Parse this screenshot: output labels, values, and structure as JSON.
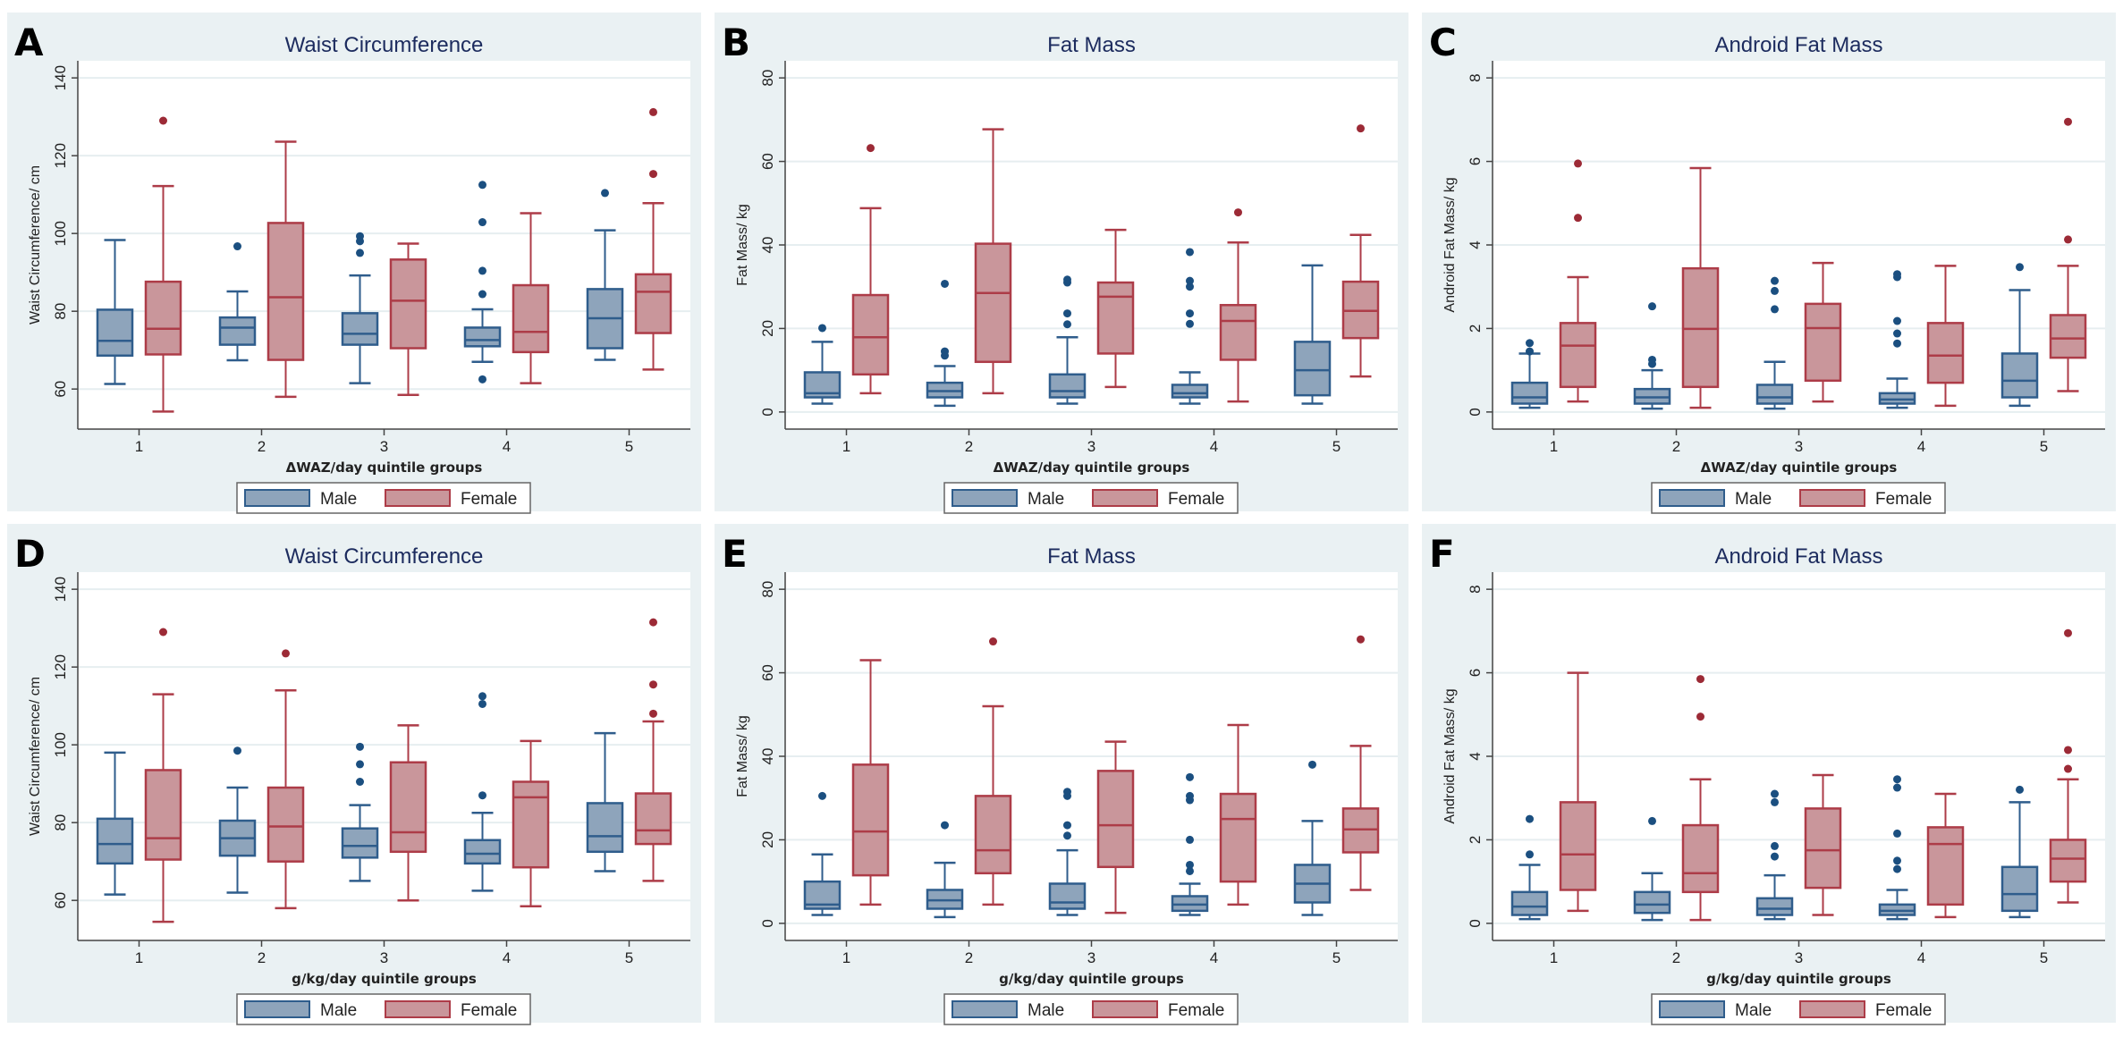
{
  "colors": {
    "panel_bg": "#eaf1f3",
    "male_fill": "#8ea4bb",
    "male_stroke": "#2f5d8c",
    "male_outlier": "#1b4f80",
    "female_fill": "#c9969b",
    "female_stroke": "#ad3c48",
    "female_outlier": "#9c2a36",
    "title": "#1c2b5e"
  },
  "chart_data": [
    {
      "panel": "A",
      "type": "box",
      "title": "Waist Circumference",
      "ylabel": "Waist Circumference/ cm",
      "xlabel": "ΔWAZ/day quintile groups",
      "ylim": [
        49.7,
        144.4
      ],
      "yticks": [
        60,
        80,
        100,
        120,
        140
      ],
      "grid": true,
      "categories": [
        "1",
        "2",
        "3",
        "4",
        "5"
      ],
      "legend": [
        "Male",
        "Female"
      ],
      "legend_position": "bottom",
      "box_fields": [
        "min",
        "q1",
        "median",
        "q3",
        "max",
        "outliers"
      ],
      "series": [
        {
          "name": "Male",
          "boxes": [
            [
              61.3,
              68.6,
              72.4,
              80.4,
              98.3,
              []
            ],
            [
              67.4,
              71.4,
              75.8,
              78.4,
              85.1,
              [
                96.7
              ]
            ],
            [
              61.5,
              71.4,
              74.2,
              79.5,
              89.2,
              [
                95,
                98,
                99.3
              ]
            ],
            [
              67,
              71,
              72.6,
              75.8,
              80.5,
              [
                62.5,
                84.4,
                90.4,
                102.9,
                112.5
              ]
            ],
            [
              67.5,
              70.5,
              78.2,
              85.7,
              100.8,
              [
                110.4
              ]
            ]
          ]
        },
        {
          "name": "Female",
          "boxes": [
            [
              54.2,
              68.9,
              75.5,
              87.6,
              112.2,
              [
                129
              ]
            ],
            [
              58,
              67.5,
              83.6,
              102.7,
              123.6,
              []
            ],
            [
              58.5,
              70.5,
              82.7,
              93.3,
              97.4,
              []
            ],
            [
              61.5,
              69.5,
              74.7,
              86.7,
              105.2,
              []
            ],
            [
              65,
              74.4,
              85,
              89.5,
              107.8,
              [
                115.3,
                131.2
              ]
            ]
          ]
        }
      ]
    },
    {
      "panel": "B",
      "type": "box",
      "title": "Fat Mass",
      "ylabel": "Fat Mass/ kg",
      "xlabel": "ΔWAZ/day quintile groups",
      "ylim": [
        -4.1,
        84.1
      ],
      "yticks": [
        0,
        20,
        40,
        60,
        80
      ],
      "grid": true,
      "categories": [
        "1",
        "2",
        "3",
        "4",
        "5"
      ],
      "legend": [
        "Male",
        "Female"
      ],
      "legend_position": "bottom",
      "box_fields": [
        "min",
        "q1",
        "median",
        "q3",
        "max",
        "outliers"
      ],
      "series": [
        {
          "name": "Male",
          "boxes": [
            [
              2,
              3.5,
              4.5,
              9.5,
              16.8,
              [
                20.1
              ]
            ],
            [
              1.5,
              3.5,
              5,
              7,
              11,
              [
                13.5,
                14.5,
                30.7
              ]
            ],
            [
              2,
              3.5,
              5,
              9,
              17.9,
              [
                21,
                23.6,
                31,
                31.7
              ]
            ],
            [
              2,
              3.5,
              4.5,
              6.5,
              9.5,
              [
                21.1,
                23.6,
                30,
                31.4,
                38.3
              ]
            ],
            [
              2,
              4,
              10,
              16.8,
              35.1,
              []
            ]
          ]
        },
        {
          "name": "Female",
          "boxes": [
            [
              4.5,
              9,
              17.9,
              28,
              48.8,
              [
                63.2
              ]
            ],
            [
              4.5,
              12,
              28.5,
              40.3,
              67.7,
              []
            ],
            [
              6,
              14,
              27.6,
              31,
              43.6,
              []
            ],
            [
              2.5,
              12.5,
              21.8,
              25.6,
              40.6,
              [
                47.8
              ]
            ],
            [
              8.5,
              17.7,
              24.2,
              31.2,
              42.4,
              [
                67.9
              ]
            ]
          ]
        }
      ]
    },
    {
      "panel": "C",
      "type": "box",
      "title": "Android Fat Mass",
      "ylabel": "Android Fat Mass/ kg",
      "xlabel": "ΔWAZ/day quintile groups",
      "ylim": [
        -0.41,
        8.41
      ],
      "yticks": [
        0,
        2,
        4,
        6,
        8
      ],
      "grid": true,
      "categories": [
        "1",
        "2",
        "3",
        "4",
        "5"
      ],
      "legend": [
        "Male",
        "Female"
      ],
      "legend_position": "bottom",
      "box_fields": [
        "min",
        "q1",
        "median",
        "q3",
        "max",
        "outliers"
      ],
      "series": [
        {
          "name": "Male",
          "boxes": [
            [
              0.1,
              0.2,
              0.35,
              0.7,
              1.4,
              [
                1.45,
                1.65
              ]
            ],
            [
              0.08,
              0.2,
              0.35,
              0.55,
              1.0,
              [
                1.15,
                1.25,
                2.53
              ]
            ],
            [
              0.08,
              0.2,
              0.35,
              0.65,
              1.2,
              [
                2.46,
                2.9,
                3.14
              ]
            ],
            [
              0.1,
              0.2,
              0.3,
              0.45,
              0.8,
              [
                1.64,
                1.88,
                2.18,
                3.23,
                3.3
              ]
            ],
            [
              0.15,
              0.35,
              0.75,
              1.4,
              2.92,
              [
                3.47
              ]
            ]
          ]
        },
        {
          "name": "Female",
          "boxes": [
            [
              0.25,
              0.6,
              1.59,
              2.13,
              3.23,
              [
                4.65,
                5.95
              ]
            ],
            [
              0.1,
              0.6,
              1.99,
              3.44,
              5.84,
              []
            ],
            [
              0.25,
              0.75,
              2.01,
              2.59,
              3.57,
              []
            ],
            [
              0.15,
              0.7,
              1.35,
              2.13,
              3.5,
              []
            ],
            [
              0.5,
              1.3,
              1.76,
              2.32,
              3.5,
              [
                4.13,
                6.95
              ]
            ]
          ]
        }
      ]
    },
    {
      "panel": "D",
      "type": "box",
      "title": "Waist Circumference",
      "ylabel": "Waist Circumference/ cm",
      "xlabel": "g/kg/day quintile groups",
      "ylim": [
        49.7,
        144.4
      ],
      "yticks": [
        60,
        80,
        100,
        120,
        140
      ],
      "grid": true,
      "categories": [
        "1",
        "2",
        "3",
        "4",
        "5"
      ],
      "legend": [
        "Male",
        "Female"
      ],
      "legend_position": "bottom",
      "box_fields": [
        "min",
        "q1",
        "median",
        "q3",
        "max",
        "outliers"
      ],
      "series": [
        {
          "name": "Male",
          "boxes": [
            [
              61.5,
              69.5,
              74.5,
              81,
              98,
              []
            ],
            [
              62,
              71.5,
              76,
              80.5,
              89,
              [
                98.5
              ]
            ],
            [
              65,
              71,
              74,
              78.5,
              84.5,
              [
                90.5,
                95,
                99.5
              ]
            ],
            [
              62.5,
              69.5,
              72,
              75.5,
              82.5,
              [
                87,
                110.5,
                112.5
              ]
            ],
            [
              67.5,
              72.5,
              76.5,
              85,
              103,
              []
            ]
          ]
        },
        {
          "name": "Female",
          "boxes": [
            [
              54.5,
              70.5,
              76,
              93.5,
              113,
              [
                129
              ]
            ],
            [
              58,
              70,
              79,
              89,
              114,
              [
                123.5
              ]
            ],
            [
              60,
              72.5,
              77.5,
              95.5,
              105,
              []
            ],
            [
              58.5,
              68.5,
              86.5,
              90.5,
              101,
              []
            ],
            [
              65,
              74.5,
              78,
              87.5,
              106,
              [
                108,
                115.5,
                131.5
              ]
            ]
          ]
        }
      ]
    },
    {
      "panel": "E",
      "type": "box",
      "title": "Fat Mass",
      "ylabel": "Fat Mass/ kg",
      "xlabel": "g/kg/day quintile groups",
      "ylim": [
        -4.1,
        84.1
      ],
      "yticks": [
        0,
        20,
        40,
        60,
        80
      ],
      "grid": true,
      "categories": [
        "1",
        "2",
        "3",
        "4",
        "5"
      ],
      "legend": [
        "Male",
        "Female"
      ],
      "legend_position": "bottom",
      "box_fields": [
        "min",
        "q1",
        "median",
        "q3",
        "max",
        "outliers"
      ],
      "series": [
        {
          "name": "Male",
          "boxes": [
            [
              2,
              3.5,
              4.5,
              10,
              16.5,
              [
                30.5
              ]
            ],
            [
              1.5,
              3.5,
              5.5,
              8,
              14.5,
              [
                23.5
              ]
            ],
            [
              2,
              3.5,
              5,
              9.5,
              17.5,
              [
                21,
                23.5,
                30.5,
                31.5
              ]
            ],
            [
              2,
              3,
              4.5,
              6.5,
              9.5,
              [
                12.5,
                14,
                20,
                29.5,
                30.5,
                35
              ]
            ],
            [
              2,
              5,
              9.5,
              14,
              24.5,
              [
                38
              ]
            ]
          ]
        },
        {
          "name": "Female",
          "boxes": [
            [
              4.5,
              11.5,
              22,
              38,
              63,
              []
            ],
            [
              4.5,
              12,
              17.5,
              30.5,
              52,
              [
                67.5
              ]
            ],
            [
              2.5,
              13.5,
              23.5,
              36.5,
              43.5,
              []
            ],
            [
              4.5,
              10,
              25,
              31,
              47.5,
              []
            ],
            [
              8,
              17,
              22.5,
              27.5,
              42.5,
              [
                68
              ]
            ]
          ]
        }
      ]
    },
    {
      "panel": "F",
      "type": "box",
      "title": "Android Fat Mass",
      "ylabel": "Android Fat Mass/ kg",
      "xlabel": "g/kg/day quintile groups",
      "ylim": [
        -0.41,
        8.41
      ],
      "yticks": [
        0,
        2,
        4,
        6,
        8
      ],
      "grid": true,
      "categories": [
        "1",
        "2",
        "3",
        "4",
        "5"
      ],
      "legend": [
        "Male",
        "Female"
      ],
      "legend_position": "bottom",
      "box_fields": [
        "min",
        "q1",
        "median",
        "q3",
        "max",
        "outliers"
      ],
      "series": [
        {
          "name": "Male",
          "boxes": [
            [
              0.1,
              0.2,
              0.4,
              0.75,
              1.4,
              [
                1.65,
                2.5
              ]
            ],
            [
              0.08,
              0.25,
              0.45,
              0.75,
              1.2,
              [
                2.45
              ]
            ],
            [
              0.1,
              0.2,
              0.35,
              0.6,
              1.15,
              [
                1.6,
                1.85,
                2.9,
                3.1
              ]
            ],
            [
              0.1,
              0.2,
              0.3,
              0.45,
              0.8,
              [
                1.3,
                1.5,
                2.15,
                3.25,
                3.45
              ]
            ],
            [
              0.15,
              0.3,
              0.7,
              1.35,
              2.9,
              [
                3.2
              ]
            ]
          ]
        },
        {
          "name": "Female",
          "boxes": [
            [
              0.3,
              0.8,
              1.65,
              2.9,
              6,
              []
            ],
            [
              0.08,
              0.75,
              1.2,
              2.35,
              3.45,
              [
                4.95,
                5.85
              ]
            ],
            [
              0.2,
              0.85,
              1.75,
              2.75,
              3.55,
              []
            ],
            [
              0.15,
              0.45,
              1.9,
              2.3,
              3.1,
              []
            ],
            [
              0.5,
              1.0,
              1.55,
              2.0,
              3.45,
              [
                3.7,
                4.15,
                6.95
              ]
            ]
          ]
        }
      ]
    }
  ]
}
